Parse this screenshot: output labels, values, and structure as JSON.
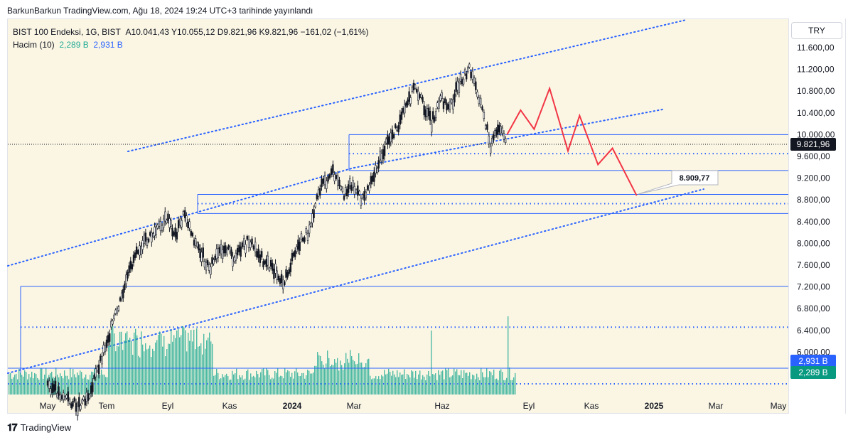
{
  "header": {
    "publisher": "BarkunBarkun TradingView.com, Ağu 18, 2024 19:24 UTC+3 tarihinde yayınlandı"
  },
  "legend": {
    "instrument": "BIST 100 Endeksi, 1G, BIST",
    "ohlc": "A10.041,43  Y10.055,12  D9.821,96  K9.821,96  −161,02 (−1,61%)",
    "volume_label": "Hacim (10)",
    "volume_value": "2,289 B",
    "volume_ma": "2,931 B"
  },
  "currency": "TRY",
  "footer": {
    "brand": "TradingView",
    "logo_icon": "tradingview-logo-icon"
  },
  "colors": {
    "channel": "#2962ff",
    "projection": "#f23645",
    "volume": "#22ab94",
    "background": "#fbf6e4"
  },
  "chart_data": {
    "type": "candlestick",
    "y_ticks": [
      "11.600,00",
      "11.200,00",
      "10.800,00",
      "10.400,00",
      "10.000,00",
      "9.600,00",
      "9.200,00",
      "8.800,00",
      "8.400,00",
      "8.000,00",
      "7.600,00",
      "7.200,00",
      "6.800,00",
      "6.400,00",
      "6.000,00"
    ],
    "y_tick_values": [
      11600,
      11200,
      10800,
      10400,
      10000,
      9600,
      9200,
      8800,
      8400,
      8000,
      7600,
      7200,
      6800,
      6400,
      6000
    ],
    "x_ticks": [
      "May",
      "Tem",
      "Eyl",
      "Kas",
      "2024",
      "Mar",
      "Haz",
      "Eyl",
      "Kas",
      "2025",
      "Mar",
      "May"
    ],
    "x_ticks_bold": [
      "2024",
      "2025"
    ],
    "last_price": "9.821,96",
    "last_price_value": 9821.96,
    "volume_ma_label": "2,931 B",
    "volume_label": "2,289 B",
    "projection_target_label": "8.909,77",
    "projection_target": 8909.77,
    "horizontal_levels": [
      10000,
      9650,
      9340,
      8900,
      8730,
      8550,
      7210
    ],
    "dotted_levels": [
      9650,
      8730,
      6460
    ],
    "price_path": [
      [
        "2023-05-01",
        5400
      ],
      [
        "2023-06-01",
        5000
      ],
      [
        "2023-06-15",
        5300
      ],
      [
        "2023-07-01",
        6200
      ],
      [
        "2023-07-15",
        6900
      ],
      [
        "2023-08-01",
        7900
      ],
      [
        "2023-08-15",
        8100
      ],
      [
        "2023-09-01",
        8450
      ],
      [
        "2023-09-10",
        8150
      ],
      [
        "2023-09-20",
        8550
      ],
      [
        "2023-10-01",
        8000
      ],
      [
        "2023-10-15",
        7550
      ],
      [
        "2023-11-01",
        7950
      ],
      [
        "2023-11-10",
        7700
      ],
      [
        "2023-11-25",
        8050
      ],
      [
        "2023-12-10",
        7700
      ],
      [
        "2024-01-01",
        7300
      ],
      [
        "2024-01-15",
        7950
      ],
      [
        "2024-01-25",
        8200
      ],
      [
        "2024-02-05",
        8950
      ],
      [
        "2024-02-20",
        9300
      ],
      [
        "2024-03-01",
        8900
      ],
      [
        "2024-03-10",
        9100
      ],
      [
        "2024-03-20",
        8800
      ],
      [
        "2024-04-01",
        9200
      ],
      [
        "2024-04-15",
        9800
      ],
      [
        "2024-05-01",
        10300
      ],
      [
        "2024-05-15",
        10900
      ],
      [
        "2024-06-01",
        10200
      ],
      [
        "2024-06-10",
        10700
      ],
      [
        "2024-06-20",
        10500
      ],
      [
        "2024-07-01",
        11000
      ],
      [
        "2024-07-10",
        11200
      ],
      [
        "2024-07-20",
        10700
      ],
      [
        "2024-08-01",
        9800
      ],
      [
        "2024-08-10",
        10100
      ],
      [
        "2024-08-18",
        9822
      ]
    ],
    "projection_path": [
      [
        "2024-08-18",
        10000
      ],
      [
        "2024-09-01",
        10450
      ],
      [
        "2024-09-15",
        10100
      ],
      [
        "2024-10-01",
        10850
      ],
      [
        "2024-10-20",
        9700
      ],
      [
        "2024-11-01",
        10350
      ],
      [
        "2024-11-20",
        9450
      ],
      [
        "2024-12-05",
        9750
      ],
      [
        "2024-12-30",
        8880
      ]
    ]
  }
}
